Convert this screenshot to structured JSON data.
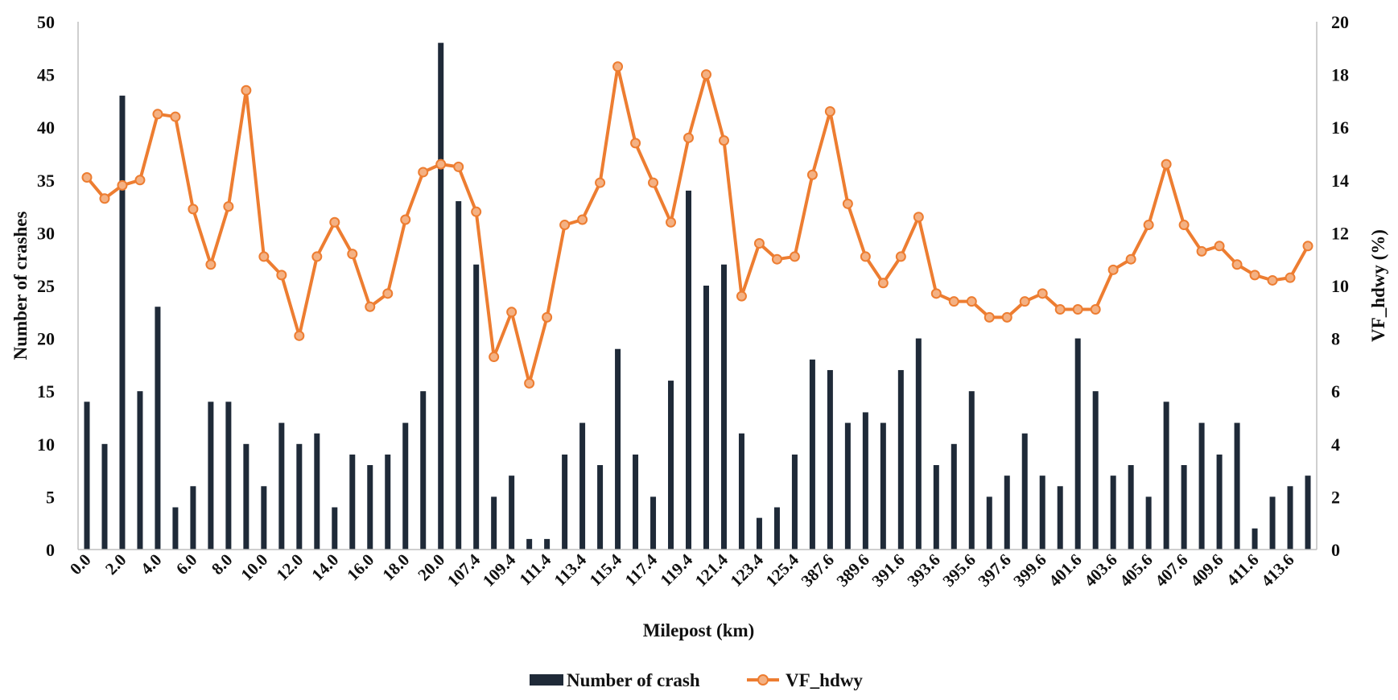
{
  "chart_data": {
    "type": "bar",
    "xlabel": "Milepost (km)",
    "ylabel_left": "Number of crashes",
    "ylabel_right": "VF_hdwy (%)",
    "ylim_left": [
      0,
      50
    ],
    "ylim_right": [
      0,
      20
    ],
    "yticks_left": [
      0,
      5,
      10,
      15,
      20,
      25,
      30,
      35,
      40,
      45,
      50
    ],
    "yticks_right": [
      0,
      2,
      4,
      6,
      8,
      10,
      12,
      14,
      16,
      18,
      20
    ],
    "grid": false,
    "legend_position": "bottom",
    "categories": [
      "0.0",
      "1.0",
      "2.0",
      "3.0",
      "4.0",
      "5.0",
      "6.0",
      "7.0",
      "8.0",
      "9.0",
      "10.0",
      "11.0",
      "12.0",
      "13.0",
      "14.0",
      "15.0",
      "16.0",
      "17.0",
      "18.0",
      "19.0",
      "20.0",
      "106.4",
      "107.4",
      "108.4",
      "109.4",
      "110.4",
      "111.4",
      "112.4",
      "113.4",
      "114.4",
      "115.4",
      "116.4",
      "117.4",
      "118.4",
      "119.4",
      "120.4",
      "121.4",
      "122.4",
      "123.4",
      "124.4",
      "125.4",
      "386.6",
      "387.6",
      "388.6",
      "389.6",
      "390.6",
      "391.6",
      "392.6",
      "393.6",
      "394.6",
      "395.6",
      "396.6",
      "397.6",
      "398.6",
      "399.6",
      "400.6",
      "401.6",
      "402.6",
      "403.6",
      "404.6",
      "405.6",
      "406.6",
      "407.6",
      "408.6",
      "409.6",
      "410.6",
      "411.6",
      "412.6",
      "413.6",
      "414.6"
    ],
    "shown_tick_labels": [
      "0.0",
      "2.0",
      "4.0",
      "6.0",
      "8.0",
      "10.0",
      "12.0",
      "14.0",
      "16.0",
      "18.0",
      "20.0",
      "107.4",
      "109.4",
      "111.4",
      "113.4",
      "115.4",
      "117.4",
      "119.4",
      "121.4",
      "123.4",
      "125.4",
      "387.6",
      "389.6",
      "391.6",
      "393.6",
      "395.6",
      "397.6",
      "399.6",
      "401.6",
      "403.6",
      "405.6",
      "407.6",
      "409.6",
      "411.6",
      "413.6"
    ],
    "series": [
      {
        "name": "Number of crash",
        "type": "bar",
        "axis": "left",
        "color": "#1f2a38",
        "values": [
          14,
          10,
          43,
          15,
          23,
          4,
          6,
          14,
          14,
          10,
          6,
          12,
          10,
          11,
          4,
          9,
          8,
          9,
          12,
          15,
          48,
          33,
          27,
          5,
          7,
          1,
          1,
          9,
          12,
          8,
          19,
          9,
          5,
          16,
          34,
          25,
          27,
          11,
          3,
          4,
          9,
          18,
          17,
          12,
          13,
          12,
          17,
          20,
          8,
          10,
          15,
          5,
          7,
          11,
          7,
          6,
          20,
          15,
          7,
          8,
          5,
          14,
          8,
          12,
          9,
          12,
          2,
          5,
          6,
          7
        ]
      },
      {
        "name": "VF_hdwy",
        "type": "line",
        "axis": "right",
        "color": "#ed7d31",
        "values": [
          14.1,
          13.3,
          13.8,
          14.0,
          16.5,
          16.4,
          12.9,
          10.8,
          13.0,
          17.4,
          11.1,
          10.4,
          8.1,
          11.1,
          12.4,
          11.2,
          9.2,
          9.7,
          12.5,
          14.3,
          14.6,
          14.5,
          12.8,
          7.3,
          9.0,
          6.3,
          8.8,
          12.3,
          12.5,
          13.9,
          18.3,
          15.4,
          13.9,
          12.4,
          15.6,
          18.0,
          15.5,
          9.6,
          11.6,
          11.0,
          11.1,
          14.2,
          16.6,
          13.1,
          11.1,
          10.1,
          11.1,
          12.6,
          9.7,
          9.4,
          9.4,
          8.8,
          8.8,
          9.4,
          9.7,
          9.1,
          9.1,
          9.1,
          10.6,
          11.0,
          12.3,
          14.6,
          12.3,
          11.3,
          11.5,
          10.8,
          10.4,
          10.2,
          10.3,
          11.5
        ]
      }
    ]
  }
}
